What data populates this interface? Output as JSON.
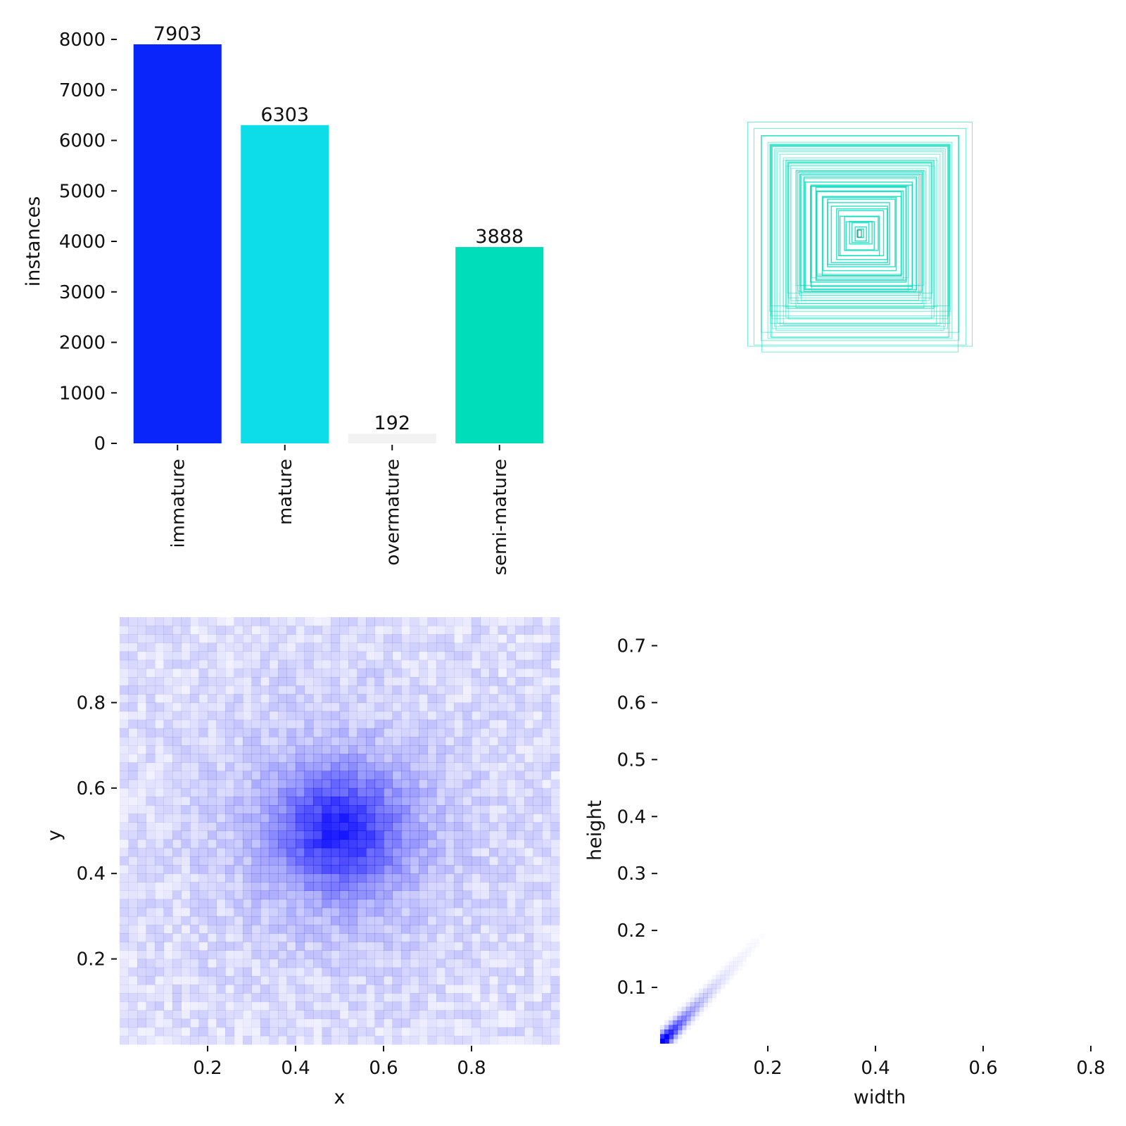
{
  "chart_data": [
    {
      "type": "bar",
      "categories": [
        "immature",
        "mature",
        "overmature",
        "semi-mature"
      ],
      "values": [
        7903,
        6303,
        192,
        3888
      ],
      "colors": [
        "#0a25fa",
        "#0cdde8",
        "#f2f2f2",
        "#00ddbb"
      ],
      "ylabel": "instances",
      "ylim": [
        0,
        8000
      ],
      "yticks": [
        0,
        1000,
        2000,
        3000,
        4000,
        5000,
        6000,
        7000,
        8000
      ],
      "grid": false
    },
    {
      "type": "boxes-overlay",
      "description_free": true,
      "box_color": "#00ddbb",
      "boxes": [
        {
          "w": 0.55,
          "h": 0.52
        },
        {
          "w": 0.53,
          "h": 0.5
        },
        {
          "w": 0.52,
          "h": 0.52
        },
        {
          "w": 0.48,
          "h": 0.48
        },
        {
          "w": 0.46,
          "h": 0.46
        },
        {
          "w": 0.44,
          "h": 0.44
        },
        {
          "w": 0.43,
          "h": 0.42
        },
        {
          "w": 0.4,
          "h": 0.4
        },
        {
          "w": 0.38,
          "h": 0.38
        },
        {
          "w": 0.36,
          "h": 0.36
        },
        {
          "w": 0.34,
          "h": 0.34
        },
        {
          "w": 0.32,
          "h": 0.33
        },
        {
          "w": 0.3,
          "h": 0.3
        },
        {
          "w": 0.28,
          "h": 0.28
        },
        {
          "w": 0.26,
          "h": 0.26
        },
        {
          "w": 0.24,
          "h": 0.24
        },
        {
          "w": 0.22,
          "h": 0.22
        },
        {
          "w": 0.2,
          "h": 0.2
        },
        {
          "w": 0.18,
          "h": 0.18
        },
        {
          "w": 0.16,
          "h": 0.16
        },
        {
          "w": 0.14,
          "h": 0.14
        },
        {
          "w": 0.12,
          "h": 0.12
        },
        {
          "w": 0.1,
          "h": 0.1
        },
        {
          "w": 0.08,
          "h": 0.08
        },
        {
          "w": 0.06,
          "h": 0.07
        },
        {
          "w": 0.04,
          "h": 0.05
        },
        {
          "w": 0.02,
          "h": 0.03
        }
      ]
    },
    {
      "type": "heatmap",
      "xlabel": "x",
      "ylabel": "y",
      "xlim": [
        0,
        1
      ],
      "ylim": [
        0,
        1
      ],
      "xticks": [
        0.2,
        0.4,
        0.6,
        0.8
      ],
      "yticks": [
        0.2,
        0.4,
        0.6,
        0.8
      ],
      "bins": 50,
      "center": [
        0.5,
        0.5
      ],
      "color": "#0000ff"
    },
    {
      "type": "heatmap",
      "xlabel": "width",
      "ylabel": "height",
      "xlim": [
        0,
        0.8
      ],
      "ylim": [
        0,
        0.75
      ],
      "xticks": [
        0.2,
        0.4,
        0.6,
        0.8
      ],
      "yticks": [
        0.1,
        0.2,
        0.3,
        0.4,
        0.5,
        0.6,
        0.7
      ],
      "color": "#0000ff"
    }
  ]
}
